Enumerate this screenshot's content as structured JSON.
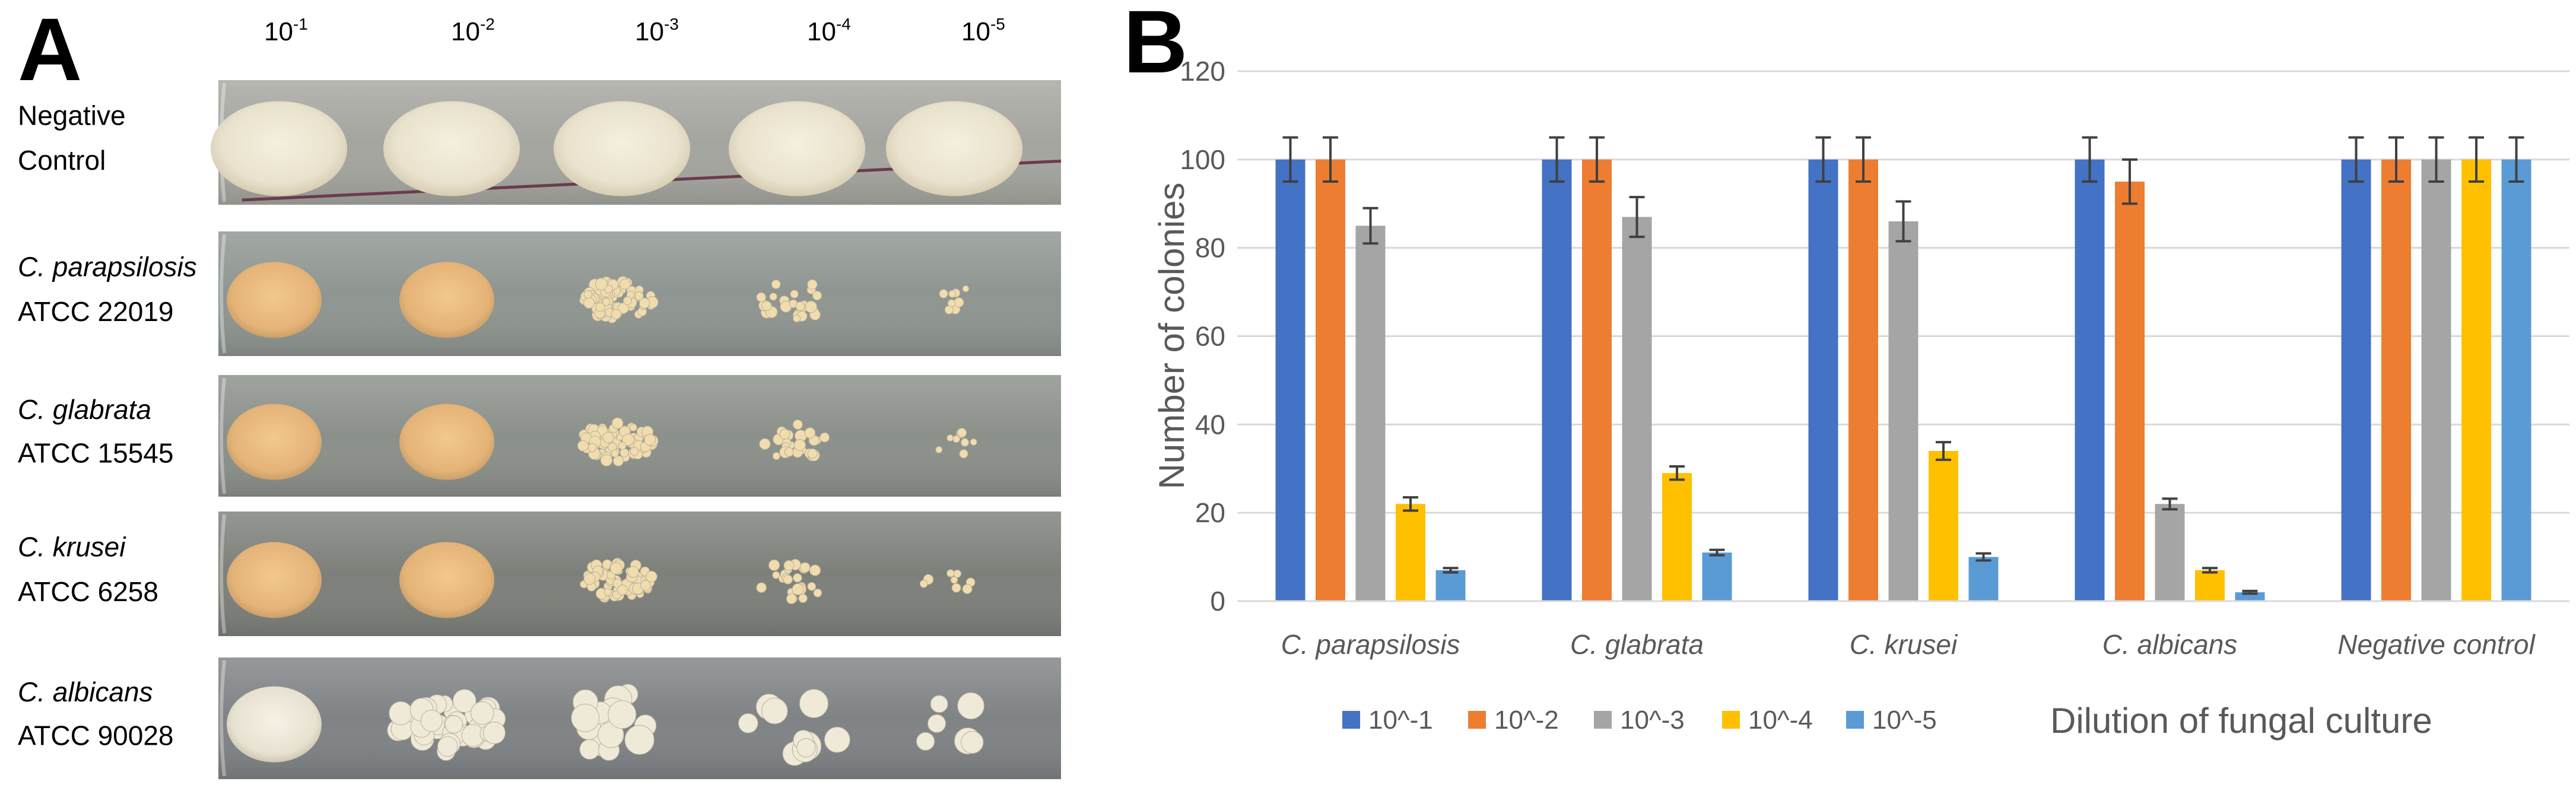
{
  "panel_a": {
    "letter": "A",
    "dilutions": [
      {
        "base": "10",
        "exp": "-1"
      },
      {
        "base": "10",
        "exp": "-2"
      },
      {
        "base": "10",
        "exp": "-3"
      },
      {
        "base": "10",
        "exp": "-4"
      },
      {
        "base": "10",
        "exp": "-5"
      }
    ],
    "rows": [
      {
        "line1": "Negative",
        "line2": "Control",
        "italic_first": false,
        "colony": "creamy",
        "plate": "#a5a5a0"
      },
      {
        "line1": "C. parapsilosis",
        "line2": "ATCC 22019",
        "italic_first": true,
        "colony": "tan",
        "plate": "#8f9590"
      },
      {
        "line1": "C. glabrata",
        "line2": "ATCC 15545",
        "italic_first": true,
        "colony": "tan",
        "plate": "#8b908a"
      },
      {
        "line1": "C. krusei",
        "line2": "ATCC 6258",
        "italic_first": true,
        "colony": "tan",
        "plate": "#7d807a"
      },
      {
        "line1": "C. albicans",
        "line2": "ATCC 90028",
        "italic_first": true,
        "colony": "white",
        "plate": "#7f8385"
      }
    ]
  },
  "panel_b": {
    "letter": "B"
  },
  "chart_data": {
    "type": "bar",
    "title": "",
    "xlabel": "Dilution of fungal culture",
    "ylabel": "Number of colonies",
    "ylim": [
      0,
      120
    ],
    "yticks": [
      0,
      20,
      40,
      60,
      80,
      100,
      120
    ],
    "grid": true,
    "legend_position": "bottom",
    "categories": [
      "C. parapsilosis",
      "C. glabrata",
      "C. krusei",
      "C. albicans",
      "Negative control"
    ],
    "series": [
      {
        "name": "10^-1",
        "color": "#4472C4",
        "values": [
          100,
          100,
          100,
          100,
          100
        ],
        "errors": [
          5,
          5,
          5,
          5,
          5
        ]
      },
      {
        "name": "10^-2",
        "color": "#ED7D31",
        "values": [
          100,
          100,
          100,
          95,
          100
        ],
        "errors": [
          5,
          5,
          5,
          5,
          5
        ]
      },
      {
        "name": "10^-3",
        "color": "#A5A5A5",
        "values": [
          85,
          87,
          86,
          22,
          100
        ],
        "errors": [
          4,
          4.5,
          4.5,
          1.2,
          5
        ]
      },
      {
        "name": "10^-4",
        "color": "#FFC000",
        "values": [
          22,
          29,
          34,
          7,
          100
        ],
        "errors": [
          1.5,
          1.5,
          2,
          0.5,
          5
        ]
      },
      {
        "name": "10^-5",
        "color": "#5B9BD5",
        "values": [
          7,
          11,
          10,
          2,
          100
        ],
        "errors": [
          0.5,
          0.6,
          0.8,
          0.3,
          5
        ]
      }
    ]
  }
}
